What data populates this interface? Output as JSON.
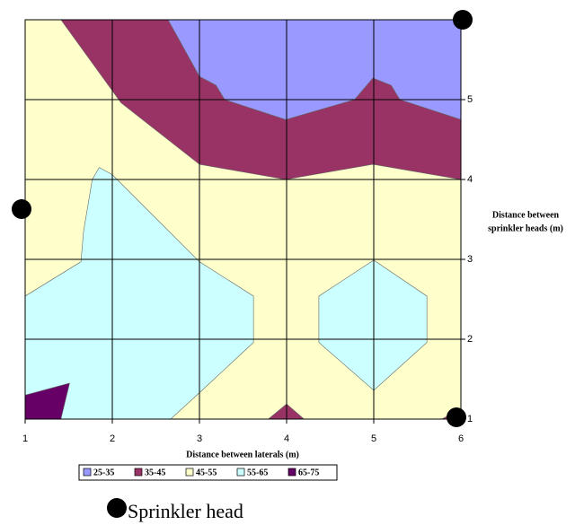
{
  "chart_data": {
    "type": "contour",
    "xlabel": "Distance between laterals (m)",
    "ylabel": [
      "Distance between",
      "sprinkler heads (m)"
    ],
    "xlim": [
      1,
      6
    ],
    "ylim": [
      1,
      6
    ],
    "xticks": [
      1,
      2,
      3,
      4,
      5,
      6
    ],
    "yticks": [
      1,
      2,
      3,
      4,
      5
    ],
    "grid": true,
    "series": [
      {
        "name": "25-35",
        "color": "#9999ff",
        "polygons": [
          {
            "x": [
              2.64,
              3.0,
              3.19,
              3.29,
              3.99,
              4.78,
              4.99,
              5.2,
              5.3,
              6,
              6
            ],
            "y": [
              6,
              5.29,
              5.18,
              5.0,
              4.75,
              5.0,
              5.27,
              5.18,
              5.0,
              4.75,
              6
            ]
          }
        ]
      },
      {
        "name": "35-45",
        "color": "#993366",
        "polygons": [
          {
            "x": [
              1.41,
              2.1,
              3.0,
              3.99,
              4.99,
              6,
              6,
              5.3,
              5.2,
              4.99,
              4.78,
              3.99,
              3.29,
              3.19,
              3.0,
              2.64
            ],
            "y": [
              6,
              4.96,
              4.19,
              4.0,
              4.19,
              4.0,
              4.75,
              5.0,
              5.18,
              5.27,
              5.0,
              4.75,
              5.0,
              5.18,
              5.29,
              6
            ]
          },
          {
            "x": [
              3.79,
              4.0,
              4.2
            ],
            "y": [
              1,
              1.19,
              1
            ]
          },
          {
            "x": [
              5.78,
              6,
              6
            ],
            "y": [
              1,
              1.13,
              1
            ]
          }
        ]
      },
      {
        "name": "45-55",
        "color": "#ffffcc",
        "polygons": [
          {
            "x": [
              1,
              6,
              6,
              1
            ],
            "y": [
              1,
              1,
              6,
              6
            ]
          }
        ]
      },
      {
        "name": "55-65",
        "color": "#ccffff",
        "polygons": [
          {
            "x": [
              1,
              1.64,
              1.67,
              1.77,
              1.85,
              2.0,
              3.0,
              3.62,
              3.62,
              3.0,
              2.67,
              1
            ],
            "y": [
              2.54,
              2.97,
              3.35,
              4.0,
              4.15,
              4.06,
              2.97,
              2.54,
              1.96,
              1.33,
              1,
              1
            ]
          },
          {
            "x": [
              5,
              5.61,
              5.61,
              5,
              4.37,
              4.37
            ],
            "y": [
              2.99,
              2.54,
              1.96,
              1.36,
              1.96,
              2.54
            ]
          }
        ]
      },
      {
        "name": "65-75",
        "color": "#660066",
        "polygons": [
          {
            "x": [
              1,
              1.51,
              1.41,
              1
            ],
            "y": [
              1.3,
              1.45,
              1,
              1
            ]
          }
        ]
      }
    ],
    "annotation": "Sprinkler head"
  }
}
